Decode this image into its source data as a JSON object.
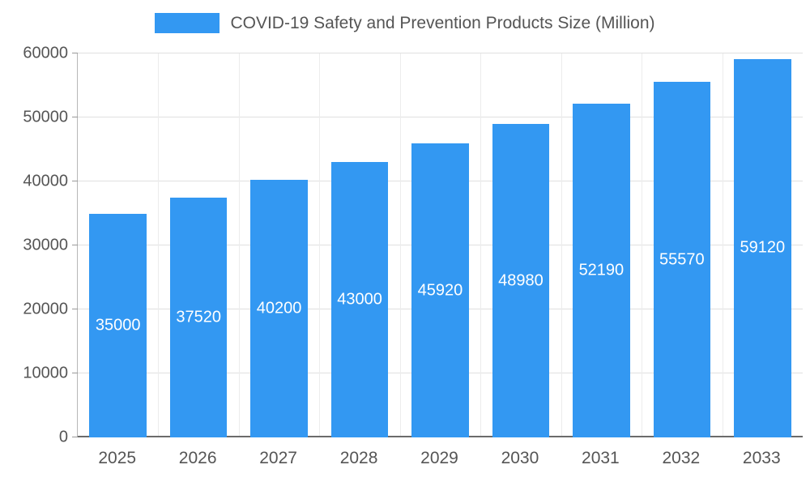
{
  "chart_data": {
    "type": "bar",
    "title": "COVID-19 Safety and Prevention Products Size (Million)",
    "categories": [
      "2025",
      "2026",
      "2027",
      "2028",
      "2029",
      "2030",
      "2031",
      "2032",
      "2033"
    ],
    "values": [
      35000,
      37520,
      40200,
      43000,
      45920,
      48980,
      52190,
      55570,
      59120
    ],
    "data_labels": [
      "35000",
      "37520",
      "40200",
      "43000",
      "45920",
      "48980",
      "52190",
      "55570",
      "59120"
    ],
    "xlabel": "",
    "ylabel": "",
    "ylim": [
      0,
      60000
    ],
    "yticks": [
      0,
      10000,
      20000,
      30000,
      40000,
      50000,
      60000
    ],
    "ytick_labels": [
      "0",
      "10000",
      "20000",
      "30000",
      "40000",
      "50000",
      "60000"
    ],
    "grid": true,
    "legend_position": "top",
    "bar_color": "#3398f2",
    "value_label_color": "#ffffff"
  },
  "colors": {
    "bar": "#3398f2",
    "axis_text": "#555555",
    "gridline": "#e0e0e0",
    "vertical_gridline": "#ececec",
    "axis_line": "#b7b7b7",
    "zero_line": "#6b6b6b",
    "background": "#ffffff"
  }
}
